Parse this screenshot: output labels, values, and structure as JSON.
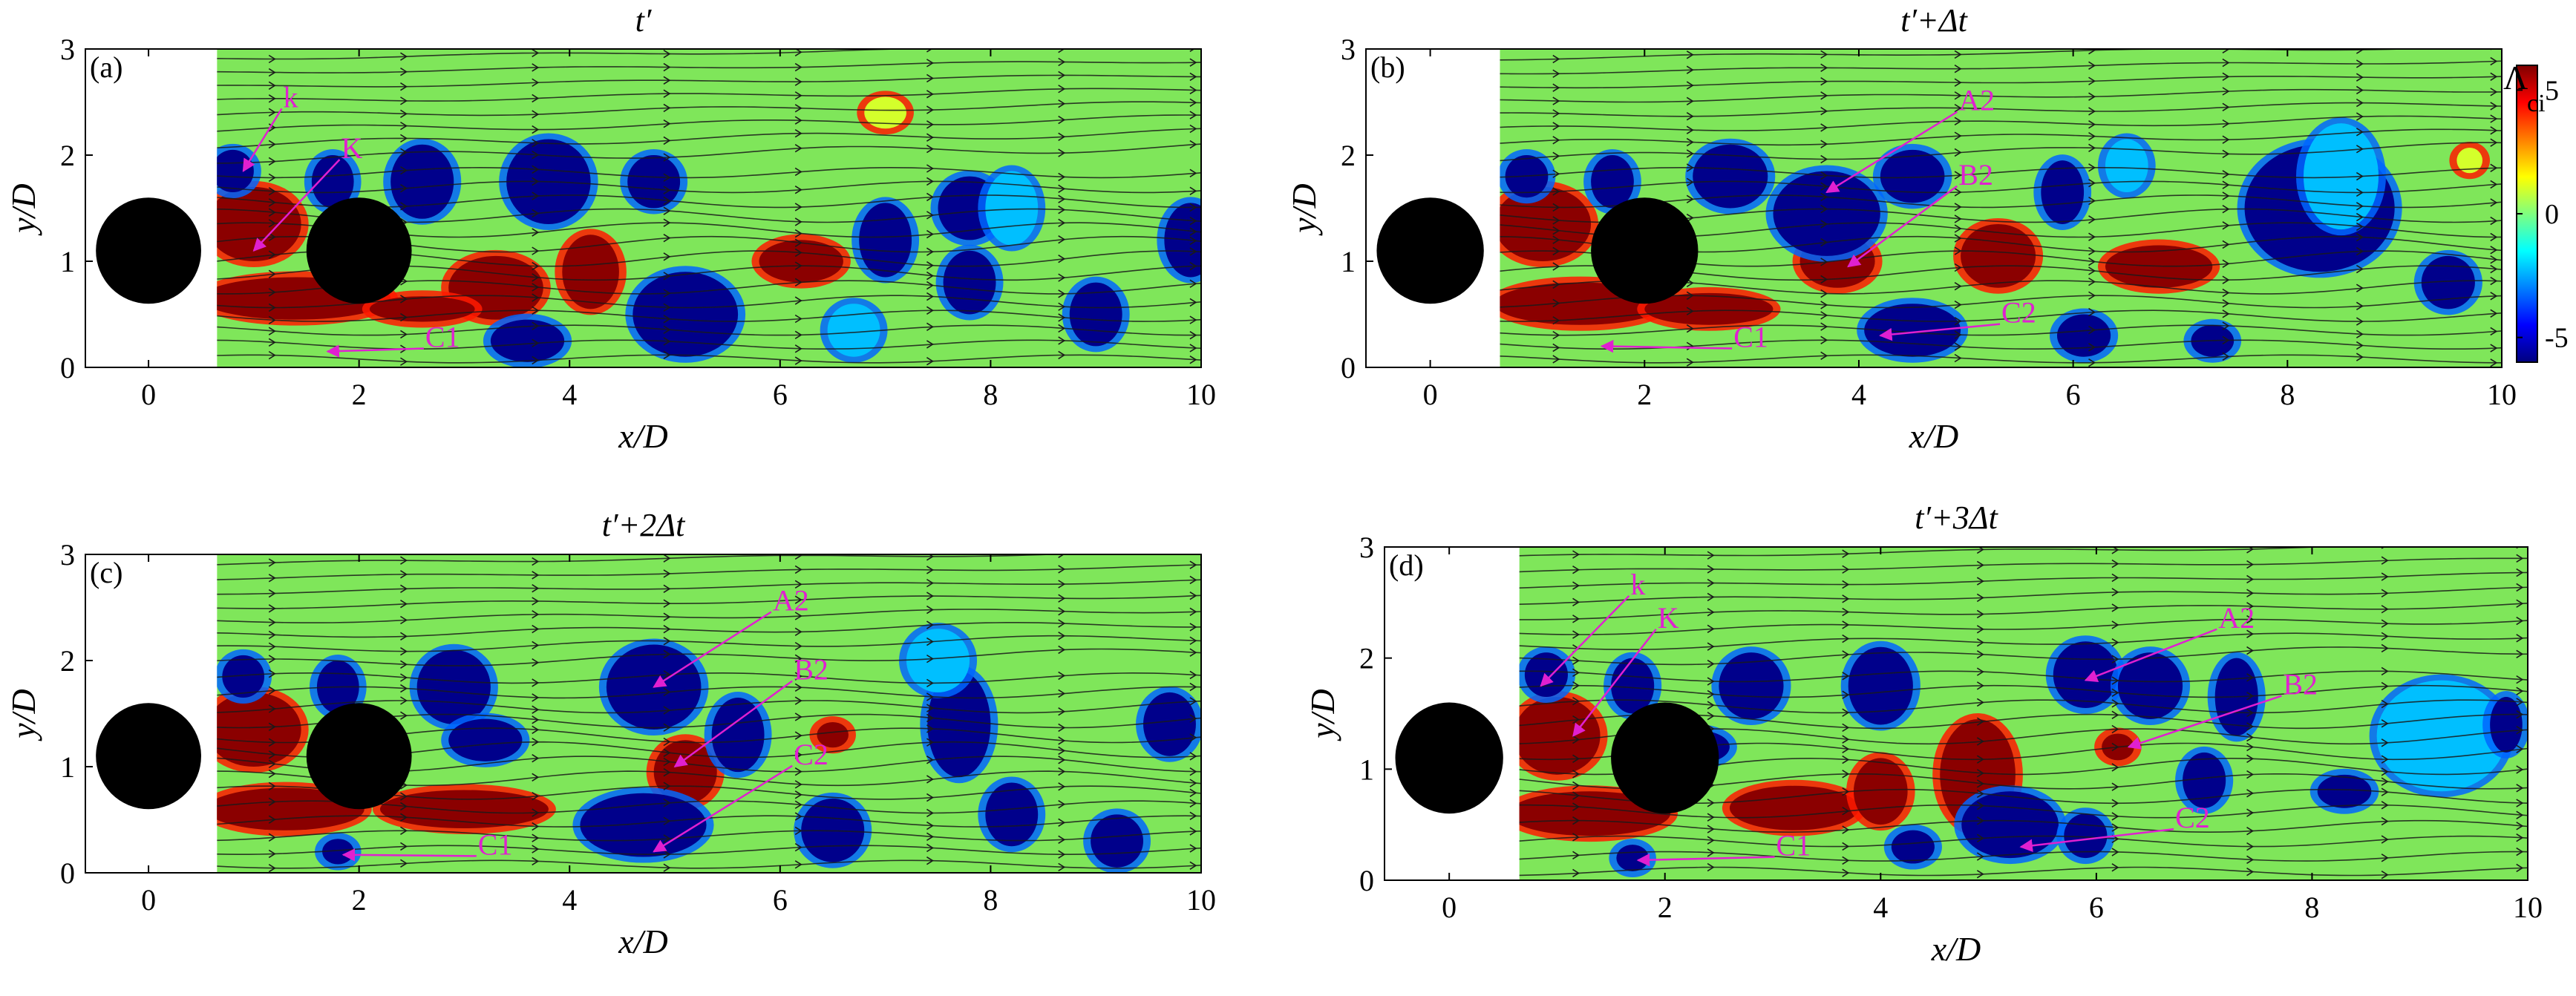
{
  "colors": {
    "background_field": "#7fe65a",
    "positive_vortex": "#8b0000",
    "negative_vortex": "#00008b",
    "annotation": "#e020d0",
    "streamline": "#1a1a1a",
    "cylinder": "#000000",
    "axis": "#000000"
  },
  "colorbar": {
    "title_main": "Λ",
    "title_sub": "ci",
    "ticks": [
      5,
      0,
      -5
    ],
    "tick_labels": [
      "5",
      "0",
      "-5"
    ],
    "range": [
      -6,
      6
    ],
    "colormap": "jet"
  },
  "chart_data": [
    {
      "type": "heatmap",
      "panel_tag": "(a)",
      "title": "t′",
      "xlabel": "x/D",
      "ylabel": "y/D",
      "xlim": [
        -0.6,
        10
      ],
      "ylim": [
        0,
        3
      ],
      "xticks": [
        0,
        2,
        4,
        6,
        8,
        10
      ],
      "xtick_labels": [
        "0",
        "2",
        "4",
        "6",
        "8",
        "10"
      ],
      "yticks": [
        0,
        1,
        2,
        3
      ],
      "ytick_labels": [
        "0",
        "1",
        "2",
        "3"
      ],
      "field_start_x": 0.65,
      "cylinders": [
        {
          "x": 0,
          "y": 1.1,
          "d": 1
        },
        {
          "x": 2,
          "y": 1.1,
          "d": 1
        }
      ],
      "vortices": [
        {
          "x": 1.0,
          "y": 1.35,
          "rx": 0.45,
          "ry": 0.35,
          "sign": 1
        },
        {
          "x": 1.4,
          "y": 0.65,
          "rx": 0.9,
          "ry": 0.2,
          "sign": 1
        },
        {
          "x": 3.3,
          "y": 0.75,
          "rx": 0.45,
          "ry": 0.3,
          "sign": 1
        },
        {
          "x": 2.6,
          "y": 0.55,
          "rx": 0.5,
          "ry": 0.12,
          "sign": 1
        },
        {
          "x": 4.2,
          "y": 0.9,
          "rx": 0.27,
          "ry": 0.35,
          "sign": 1
        },
        {
          "x": 6.2,
          "y": 1.0,
          "rx": 0.4,
          "ry": 0.2,
          "sign": 1
        },
        {
          "x": 0.8,
          "y": 1.85,
          "rx": 0.2,
          "ry": 0.2,
          "sign": -1
        },
        {
          "x": 1.75,
          "y": 1.75,
          "rx": 0.2,
          "ry": 0.25,
          "sign": -1
        },
        {
          "x": 2.6,
          "y": 1.75,
          "rx": 0.3,
          "ry": 0.35,
          "sign": -1
        },
        {
          "x": 3.8,
          "y": 1.75,
          "rx": 0.4,
          "ry": 0.4,
          "sign": -1
        },
        {
          "x": 5.1,
          "y": 0.5,
          "rx": 0.5,
          "ry": 0.4,
          "sign": -1
        },
        {
          "x": 4.8,
          "y": 1.75,
          "rx": 0.25,
          "ry": 0.25,
          "sign": -1
        },
        {
          "x": 3.6,
          "y": 0.25,
          "rx": 0.35,
          "ry": 0.2,
          "sign": -1
        },
        {
          "x": 7.0,
          "y": 1.2,
          "rx": 0.25,
          "ry": 0.35,
          "sign": -1
        },
        {
          "x": 7.8,
          "y": 1.5,
          "rx": 0.3,
          "ry": 0.3,
          "sign": -1
        },
        {
          "x": 7.8,
          "y": 0.8,
          "rx": 0.25,
          "ry": 0.3,
          "sign": -1
        },
        {
          "x": 9.0,
          "y": 0.5,
          "rx": 0.25,
          "ry": 0.3,
          "sign": -1
        },
        {
          "x": 9.9,
          "y": 1.2,
          "rx": 0.25,
          "ry": 0.35,
          "sign": -1
        },
        {
          "x": 8.2,
          "y": 1.5,
          "rx": 0.25,
          "ry": 0.35,
          "sign": -0.5
        },
        {
          "x": 6.7,
          "y": 0.35,
          "rx": 0.25,
          "ry": 0.25,
          "sign": -0.5
        },
        {
          "x": 7.0,
          "y": 2.4,
          "rx": 0.2,
          "ry": 0.15,
          "sign": 0.3
        }
      ],
      "annotations": [
        {
          "text": "k",
          "x": 1.35,
          "y": 2.48,
          "ax": 0.9,
          "ay": 1.85
        },
        {
          "text": "K",
          "x": 1.9,
          "y": 2.0,
          "ax": 1.0,
          "ay": 1.1
        },
        {
          "text": "C1",
          "x": 2.7,
          "y": 0.22,
          "ax": 1.7,
          "ay": 0.15
        }
      ]
    },
    {
      "type": "heatmap",
      "panel_tag": "(b)",
      "title": "t′+Δt",
      "xlabel": "x/D",
      "ylabel": "y/D",
      "xlim": [
        -0.6,
        10
      ],
      "ylim": [
        0,
        3
      ],
      "xticks": [
        0,
        2,
        4,
        6,
        8,
        10
      ],
      "xtick_labels": [
        "0",
        "2",
        "4",
        "6",
        "8",
        "10"
      ],
      "yticks": [
        0,
        1,
        2,
        3
      ],
      "ytick_labels": [
        "0",
        "1",
        "2",
        "3"
      ],
      "field_start_x": 0.65,
      "cylinders": [
        {
          "x": 0,
          "y": 1.1,
          "d": 1
        },
        {
          "x": 2,
          "y": 1.1,
          "d": 1
        }
      ],
      "vortices": [
        {
          "x": 1.05,
          "y": 1.35,
          "rx": 0.45,
          "ry": 0.35,
          "sign": 1
        },
        {
          "x": 1.4,
          "y": 0.6,
          "rx": 0.8,
          "ry": 0.2,
          "sign": 1
        },
        {
          "x": 2.6,
          "y": 0.55,
          "rx": 0.6,
          "ry": 0.15,
          "sign": 1
        },
        {
          "x": 3.8,
          "y": 1.0,
          "rx": 0.35,
          "ry": 0.25,
          "sign": 1
        },
        {
          "x": 5.3,
          "y": 1.05,
          "rx": 0.35,
          "ry": 0.3,
          "sign": 1
        },
        {
          "x": 6.8,
          "y": 0.95,
          "rx": 0.5,
          "ry": 0.2,
          "sign": 1
        },
        {
          "x": 9.7,
          "y": 1.95,
          "rx": 0.12,
          "ry": 0.12,
          "sign": 0.3
        },
        {
          "x": 0.9,
          "y": 1.8,
          "rx": 0.2,
          "ry": 0.2,
          "sign": -1
        },
        {
          "x": 1.7,
          "y": 1.75,
          "rx": 0.2,
          "ry": 0.25,
          "sign": -1
        },
        {
          "x": 2.8,
          "y": 1.8,
          "rx": 0.35,
          "ry": 0.3,
          "sign": -1
        },
        {
          "x": 3.7,
          "y": 1.45,
          "rx": 0.5,
          "ry": 0.4,
          "sign": -1
        },
        {
          "x": 4.5,
          "y": 1.8,
          "rx": 0.3,
          "ry": 0.25,
          "sign": -1
        },
        {
          "x": 4.5,
          "y": 0.35,
          "rx": 0.45,
          "ry": 0.25,
          "sign": -1
        },
        {
          "x": 5.9,
          "y": 1.65,
          "rx": 0.2,
          "ry": 0.3,
          "sign": -1
        },
        {
          "x": 6.1,
          "y": 0.3,
          "rx": 0.25,
          "ry": 0.2,
          "sign": -1
        },
        {
          "x": 8.3,
          "y": 1.5,
          "rx": 0.7,
          "ry": 0.6,
          "sign": -1
        },
        {
          "x": 7.3,
          "y": 0.25,
          "rx": 0.2,
          "ry": 0.15,
          "sign": -1
        },
        {
          "x": 9.5,
          "y": 0.8,
          "rx": 0.25,
          "ry": 0.25,
          "sign": -1
        },
        {
          "x": 8.5,
          "y": 1.8,
          "rx": 0.35,
          "ry": 0.5,
          "sign": -0.5
        },
        {
          "x": 6.5,
          "y": 1.9,
          "rx": 0.2,
          "ry": 0.25,
          "sign": -0.5
        }
      ],
      "annotations": [
        {
          "text": "A2",
          "x": 5.0,
          "y": 2.45,
          "ax": 3.7,
          "ay": 1.65
        },
        {
          "text": "B2",
          "x": 5.0,
          "y": 1.75,
          "ax": 3.9,
          "ay": 0.95
        },
        {
          "text": "C2",
          "x": 5.4,
          "y": 0.45,
          "ax": 4.2,
          "ay": 0.3
        },
        {
          "text": "C1",
          "x": 2.9,
          "y": 0.22,
          "ax": 1.6,
          "ay": 0.2
        }
      ]
    },
    {
      "type": "heatmap",
      "panel_tag": "(c)",
      "title": "t′+2Δt",
      "xlabel": "x/D",
      "ylabel": "y/D",
      "xlim": [
        -0.6,
        10
      ],
      "ylim": [
        0,
        3
      ],
      "xticks": [
        0,
        2,
        4,
        6,
        8,
        10
      ],
      "xtick_labels": [
        "0",
        "2",
        "4",
        "6",
        "8",
        "10"
      ],
      "yticks": [
        0,
        1,
        2,
        3
      ],
      "ytick_labels": [
        "0",
        "1",
        "2",
        "3"
      ],
      "field_start_x": 0.65,
      "cylinders": [
        {
          "x": 0,
          "y": 1.1,
          "d": 1
        },
        {
          "x": 2,
          "y": 1.1,
          "d": 1
        }
      ],
      "vortices": [
        {
          "x": 1.0,
          "y": 1.35,
          "rx": 0.45,
          "ry": 0.35,
          "sign": 1
        },
        {
          "x": 1.3,
          "y": 0.6,
          "rx": 0.75,
          "ry": 0.2,
          "sign": 1
        },
        {
          "x": 3.0,
          "y": 0.6,
          "rx": 0.8,
          "ry": 0.18,
          "sign": 1
        },
        {
          "x": 5.1,
          "y": 0.95,
          "rx": 0.3,
          "ry": 0.3,
          "sign": 1
        },
        {
          "x": 6.5,
          "y": 1.3,
          "rx": 0.15,
          "ry": 0.12,
          "sign": 1
        },
        {
          "x": 0.9,
          "y": 1.85,
          "rx": 0.2,
          "ry": 0.2,
          "sign": -1
        },
        {
          "x": 1.8,
          "y": 1.75,
          "rx": 0.2,
          "ry": 0.25,
          "sign": -1
        },
        {
          "x": 2.9,
          "y": 1.75,
          "rx": 0.35,
          "ry": 0.35,
          "sign": -1
        },
        {
          "x": 3.2,
          "y": 1.25,
          "rx": 0.35,
          "ry": 0.2,
          "sign": -1
        },
        {
          "x": 4.8,
          "y": 1.75,
          "rx": 0.45,
          "ry": 0.4,
          "sign": -1
        },
        {
          "x": 4.7,
          "y": 0.45,
          "rx": 0.6,
          "ry": 0.3,
          "sign": -1
        },
        {
          "x": 5.6,
          "y": 1.3,
          "rx": 0.25,
          "ry": 0.35,
          "sign": -1
        },
        {
          "x": 6.5,
          "y": 0.4,
          "rx": 0.3,
          "ry": 0.3,
          "sign": -1
        },
        {
          "x": 7.7,
          "y": 1.4,
          "rx": 0.3,
          "ry": 0.5,
          "sign": -1
        },
        {
          "x": 8.2,
          "y": 0.55,
          "rx": 0.25,
          "ry": 0.3,
          "sign": -1
        },
        {
          "x": 9.2,
          "y": 0.3,
          "rx": 0.25,
          "ry": 0.25,
          "sign": -1
        },
        {
          "x": 9.7,
          "y": 1.4,
          "rx": 0.25,
          "ry": 0.3,
          "sign": -1
        },
        {
          "x": 7.5,
          "y": 2.0,
          "rx": 0.3,
          "ry": 0.3,
          "sign": -0.5
        },
        {
          "x": 1.8,
          "y": 0.2,
          "rx": 0.15,
          "ry": 0.12,
          "sign": -1
        }
      ],
      "annotations": [
        {
          "text": "A2",
          "x": 6.0,
          "y": 2.5,
          "ax": 4.8,
          "ay": 1.75
        },
        {
          "text": "B2",
          "x": 6.2,
          "y": 1.85,
          "ax": 5.0,
          "ay": 1.0
        },
        {
          "text": "C2",
          "x": 6.2,
          "y": 1.05,
          "ax": 4.8,
          "ay": 0.2
        },
        {
          "text": "C1",
          "x": 3.2,
          "y": 0.2,
          "ax": 1.85,
          "ay": 0.17
        }
      ]
    },
    {
      "type": "heatmap",
      "panel_tag": "(d)",
      "title": "t′+3Δt",
      "xlabel": "x/D",
      "ylabel": "y/D",
      "xlim": [
        -0.6,
        10
      ],
      "ylim": [
        0,
        3
      ],
      "xticks": [
        0,
        2,
        4,
        6,
        8,
        10
      ],
      "xtick_labels": [
        "0",
        "2",
        "4",
        "6",
        "8",
        "10"
      ],
      "yticks": [
        0,
        1,
        2,
        3
      ],
      "ytick_labels": [
        "0",
        "1",
        "2",
        "3"
      ],
      "field_start_x": 0.65,
      "cylinders": [
        {
          "x": 0,
          "y": 1.1,
          "d": 1
        },
        {
          "x": 2,
          "y": 1.1,
          "d": 1
        }
      ],
      "vortices": [
        {
          "x": 1.0,
          "y": 1.3,
          "rx": 0.4,
          "ry": 0.35,
          "sign": 1
        },
        {
          "x": 1.3,
          "y": 0.6,
          "rx": 0.75,
          "ry": 0.2,
          "sign": 1
        },
        {
          "x": 3.2,
          "y": 0.65,
          "rx": 0.6,
          "ry": 0.2,
          "sign": 1
        },
        {
          "x": 4.0,
          "y": 0.8,
          "rx": 0.25,
          "ry": 0.3,
          "sign": 1
        },
        {
          "x": 4.9,
          "y": 0.95,
          "rx": 0.35,
          "ry": 0.5,
          "sign": 1
        },
        {
          "x": 6.2,
          "y": 1.2,
          "rx": 0.15,
          "ry": 0.12,
          "sign": 1
        },
        {
          "x": 0.9,
          "y": 1.85,
          "rx": 0.2,
          "ry": 0.2,
          "sign": -1
        },
        {
          "x": 1.7,
          "y": 1.75,
          "rx": 0.2,
          "ry": 0.25,
          "sign": -1
        },
        {
          "x": 2.8,
          "y": 1.75,
          "rx": 0.3,
          "ry": 0.3,
          "sign": -1
        },
        {
          "x": 2.3,
          "y": 1.2,
          "rx": 0.3,
          "ry": 0.15,
          "sign": -1
        },
        {
          "x": 4.0,
          "y": 1.75,
          "rx": 0.3,
          "ry": 0.35,
          "sign": -1
        },
        {
          "x": 5.2,
          "y": 0.5,
          "rx": 0.45,
          "ry": 0.3,
          "sign": -1
        },
        {
          "x": 4.3,
          "y": 0.3,
          "rx": 0.2,
          "ry": 0.15,
          "sign": -1
        },
        {
          "x": 5.9,
          "y": 1.85,
          "rx": 0.3,
          "ry": 0.3,
          "sign": -1
        },
        {
          "x": 6.5,
          "y": 1.75,
          "rx": 0.3,
          "ry": 0.3,
          "sign": -1
        },
        {
          "x": 7.0,
          "y": 0.9,
          "rx": 0.2,
          "ry": 0.25,
          "sign": -1
        },
        {
          "x": 7.3,
          "y": 1.65,
          "rx": 0.2,
          "ry": 0.35,
          "sign": -1
        },
        {
          "x": 8.3,
          "y": 0.8,
          "rx": 0.25,
          "ry": 0.15,
          "sign": -1
        },
        {
          "x": 9.2,
          "y": 1.3,
          "rx": 0.6,
          "ry": 0.5,
          "sign": -0.5
        },
        {
          "x": 9.8,
          "y": 1.4,
          "rx": 0.15,
          "ry": 0.25,
          "sign": -1
        },
        {
          "x": 1.7,
          "y": 0.2,
          "rx": 0.15,
          "ry": 0.12,
          "sign": -1
        },
        {
          "x": 5.9,
          "y": 0.4,
          "rx": 0.2,
          "ry": 0.2,
          "sign": -1
        }
      ],
      "annotations": [
        {
          "text": "k",
          "x": 1.75,
          "y": 2.6,
          "ax": 0.85,
          "ay": 1.75
        },
        {
          "text": "K",
          "x": 2.0,
          "y": 2.3,
          "ax": 1.15,
          "ay": 1.3
        },
        {
          "text": "A2",
          "x": 7.2,
          "y": 2.3,
          "ax": 5.9,
          "ay": 1.8
        },
        {
          "text": "B2",
          "x": 7.8,
          "y": 1.7,
          "ax": 6.3,
          "ay": 1.2
        },
        {
          "text": "C2",
          "x": 6.8,
          "y": 0.5,
          "ax": 5.3,
          "ay": 0.3
        },
        {
          "text": "C1",
          "x": 3.1,
          "y": 0.25,
          "ax": 1.75,
          "ay": 0.18
        }
      ]
    }
  ]
}
